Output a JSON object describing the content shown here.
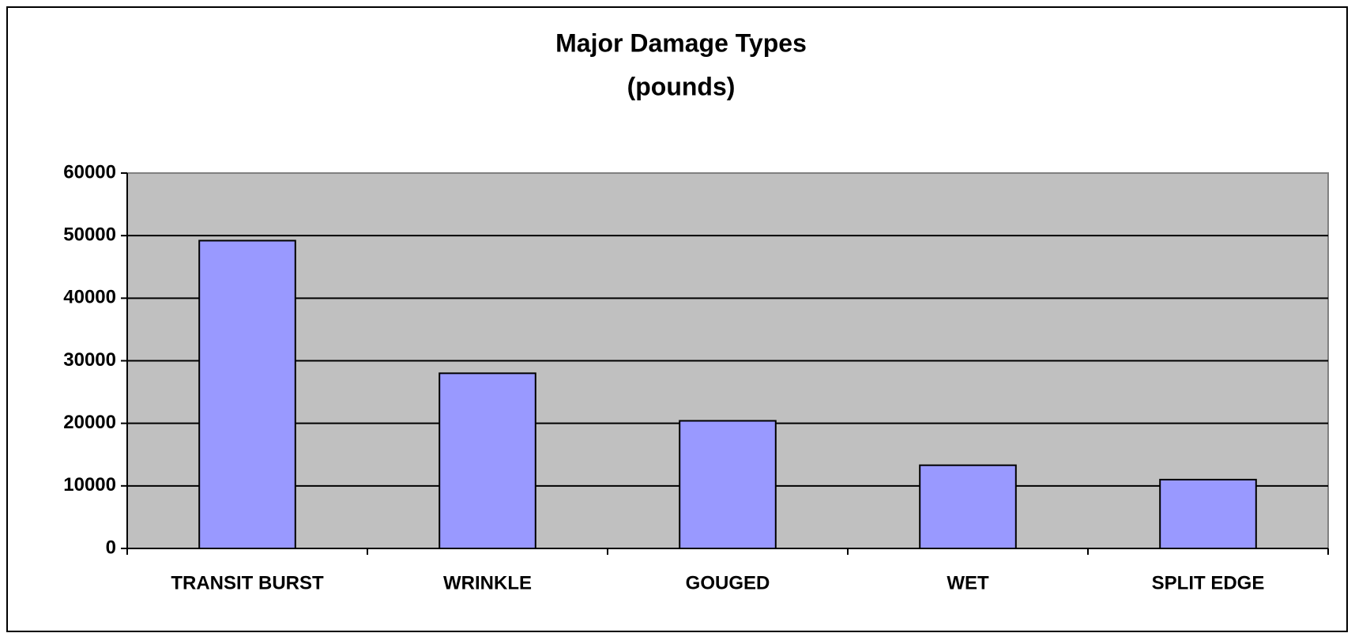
{
  "chart_data": {
    "type": "bar",
    "title": "Major Damage Types",
    "subtitle": "(pounds)",
    "categories": [
      "TRANSIT BURST",
      "WRINKLE",
      "GOUGED",
      "WET",
      "SPLIT EDGE"
    ],
    "values": [
      49200,
      28000,
      20400,
      13300,
      11000
    ],
    "color": "#9999ff",
    "ylim": [
      0,
      60000
    ],
    "yticks": [
      0,
      10000,
      20000,
      30000,
      40000,
      50000,
      60000
    ],
    "grid": true
  }
}
